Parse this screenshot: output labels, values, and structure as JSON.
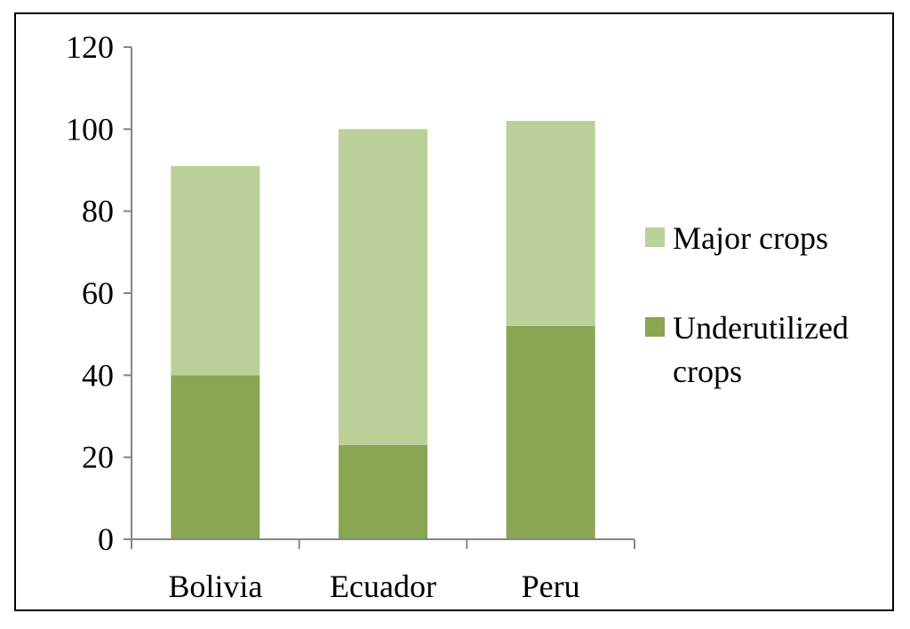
{
  "chart_data": {
    "type": "bar",
    "stacked": true,
    "categories": [
      "Bolivia",
      "Ecuador",
      "Peru"
    ],
    "series": [
      {
        "name": "Underutilized crops",
        "legend_lines": [
          "Underutilized",
          "crops"
        ],
        "values": [
          40,
          23,
          52
        ],
        "color": "#8aa653"
      },
      {
        "name": "Major crops",
        "legend_lines": [
          "Major crops"
        ],
        "values": [
          51,
          77,
          50
        ],
        "color": "#bcd09a"
      }
    ],
    "title": "",
    "xlabel": "",
    "ylabel": "",
    "ylim": [
      0,
      120
    ],
    "yticks": [
      0,
      20,
      40,
      60,
      80,
      100,
      120
    ],
    "grid": false,
    "legend_position": "right"
  }
}
